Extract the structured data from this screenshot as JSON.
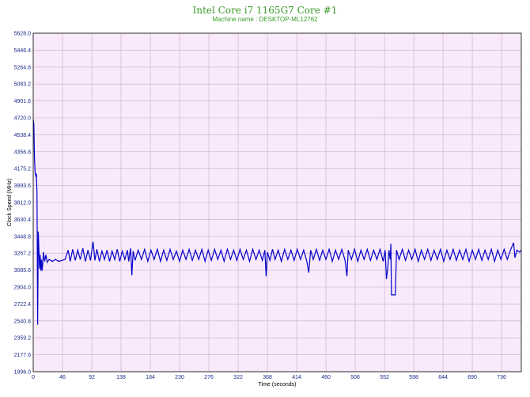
{
  "chart_data": {
    "type": "line",
    "title": "Intel Core i7 1165G7 Core #1",
    "subtitle": "Machine name : DESKTOP-ML12762",
    "xlabel": "Time (seconds)",
    "ylabel": "Clock Speed (MHz)",
    "xlim": [
      0,
      767
    ],
    "ylim": [
      1996.0,
      5628.0
    ],
    "x_ticks": [
      "0",
      "46",
      "92",
      "138",
      "184",
      "230",
      "276",
      "322",
      "368",
      "414",
      "460",
      "506",
      "552",
      "598",
      "644",
      "690",
      "736"
    ],
    "y_ticks": [
      "1996.0",
      "2177.6",
      "2359.2",
      "2540.8",
      "2722.4",
      "2904.0",
      "3085.6",
      "3267.2",
      "3448.8",
      "3630.4",
      "3812.0",
      "3993.6",
      "4175.2",
      "4356.8",
      "4538.4",
      "4720.0",
      "4901.6",
      "5083.2",
      "5264.8",
      "5446.4",
      "5628.0"
    ],
    "grid": true,
    "colors": {
      "line": "#0000c8",
      "plot_bg": "#f9eafb",
      "grid": "#c9a9c9",
      "title": "#3a9a2a",
      "tick_text": "#1b2a8a"
    },
    "series": [
      {
        "values": [
          [
            0,
            4700
          ],
          [
            1,
            4650
          ],
          [
            2,
            4280
          ],
          [
            3,
            4130
          ],
          [
            4,
            4100
          ],
          [
            5,
            4120
          ],
          [
            6,
            3900
          ],
          [
            7,
            2500
          ],
          [
            8,
            3500
          ],
          [
            9,
            3300
          ],
          [
            10,
            3100
          ],
          [
            11,
            3250
          ],
          [
            12,
            3080
          ],
          [
            13,
            3200
          ],
          [
            14,
            3080
          ],
          [
            15,
            3160
          ],
          [
            16,
            3280
          ],
          [
            18,
            3180
          ],
          [
            20,
            3250
          ],
          [
            22,
            3170
          ],
          [
            25,
            3200
          ],
          [
            30,
            3180
          ],
          [
            35,
            3200
          ],
          [
            40,
            3180
          ],
          [
            45,
            3190
          ],
          [
            50,
            3200
          ],
          [
            55,
            3300
          ],
          [
            58,
            3180
          ],
          [
            62,
            3310
          ],
          [
            66,
            3190
          ],
          [
            70,
            3300
          ],
          [
            74,
            3200
          ],
          [
            78,
            3320
          ],
          [
            82,
            3180
          ],
          [
            86,
            3300
          ],
          [
            90,
            3190
          ],
          [
            94,
            3390
          ],
          [
            97,
            3190
          ],
          [
            100,
            3310
          ],
          [
            104,
            3180
          ],
          [
            108,
            3290
          ],
          [
            112,
            3200
          ],
          [
            116,
            3300
          ],
          [
            120,
            3180
          ],
          [
            124,
            3290
          ],
          [
            128,
            3200
          ],
          [
            132,
            3310
          ],
          [
            136,
            3180
          ],
          [
            140,
            3290
          ],
          [
            144,
            3200
          ],
          [
            148,
            3300
          ],
          [
            150,
            3180
          ],
          [
            153,
            3320
          ],
          [
            155,
            3030
          ],
          [
            157,
            3290
          ],
          [
            160,
            3190
          ],
          [
            165,
            3300
          ],
          [
            170,
            3200
          ],
          [
            175,
            3310
          ],
          [
            180,
            3180
          ],
          [
            185,
            3300
          ],
          [
            190,
            3200
          ],
          [
            195,
            3310
          ],
          [
            200,
            3180
          ],
          [
            205,
            3300
          ],
          [
            210,
            3190
          ],
          [
            215,
            3310
          ],
          [
            220,
            3200
          ],
          [
            225,
            3290
          ],
          [
            230,
            3180
          ],
          [
            235,
            3300
          ],
          [
            240,
            3200
          ],
          [
            245,
            3310
          ],
          [
            250,
            3190
          ],
          [
            255,
            3300
          ],
          [
            260,
            3200
          ],
          [
            265,
            3310
          ],
          [
            270,
            3180
          ],
          [
            275,
            3300
          ],
          [
            280,
            3190
          ],
          [
            285,
            3310
          ],
          [
            290,
            3200
          ],
          [
            295,
            3300
          ],
          [
            300,
            3180
          ],
          [
            305,
            3310
          ],
          [
            310,
            3200
          ],
          [
            315,
            3300
          ],
          [
            320,
            3190
          ],
          [
            325,
            3310
          ],
          [
            330,
            3200
          ],
          [
            335,
            3300
          ],
          [
            340,
            3180
          ],
          [
            345,
            3310
          ],
          [
            350,
            3200
          ],
          [
            355,
            3300
          ],
          [
            360,
            3190
          ],
          [
            364,
            3300
          ],
          [
            366,
            3020
          ],
          [
            368,
            3280
          ],
          [
            372,
            3190
          ],
          [
            376,
            3310
          ],
          [
            380,
            3200
          ],
          [
            385,
            3300
          ],
          [
            390,
            3180
          ],
          [
            395,
            3310
          ],
          [
            400,
            3200
          ],
          [
            405,
            3300
          ],
          [
            410,
            3190
          ],
          [
            415,
            3310
          ],
          [
            420,
            3200
          ],
          [
            425,
            3300
          ],
          [
            430,
            3180
          ],
          [
            433,
            3060
          ],
          [
            436,
            3300
          ],
          [
            440,
            3200
          ],
          [
            445,
            3310
          ],
          [
            450,
            3190
          ],
          [
            455,
            3300
          ],
          [
            460,
            3200
          ],
          [
            465,
            3310
          ],
          [
            470,
            3180
          ],
          [
            475,
            3300
          ],
          [
            480,
            3200
          ],
          [
            485,
            3310
          ],
          [
            490,
            3190
          ],
          [
            493,
            3020
          ],
          [
            495,
            3300
          ],
          [
            500,
            3200
          ],
          [
            505,
            3310
          ],
          [
            510,
            3180
          ],
          [
            515,
            3300
          ],
          [
            520,
            3200
          ],
          [
            525,
            3310
          ],
          [
            530,
            3190
          ],
          [
            535,
            3300
          ],
          [
            540,
            3200
          ],
          [
            545,
            3310
          ],
          [
            550,
            3180
          ],
          [
            553,
            3300
          ],
          [
            555,
            2990
          ],
          [
            557,
            3100
          ],
          [
            559,
            3300
          ],
          [
            561,
            3200
          ],
          [
            562,
            3370
          ],
          [
            563,
            2820
          ],
          [
            569,
            2820
          ],
          [
            571,
            3300
          ],
          [
            575,
            3200
          ],
          [
            580,
            3310
          ],
          [
            585,
            3190
          ],
          [
            590,
            3300
          ],
          [
            595,
            3200
          ],
          [
            600,
            3310
          ],
          [
            605,
            3180
          ],
          [
            610,
            3300
          ],
          [
            615,
            3200
          ],
          [
            620,
            3310
          ],
          [
            625,
            3190
          ],
          [
            630,
            3300
          ],
          [
            635,
            3200
          ],
          [
            640,
            3310
          ],
          [
            645,
            3180
          ],
          [
            650,
            3300
          ],
          [
            655,
            3200
          ],
          [
            660,
            3310
          ],
          [
            665,
            3190
          ],
          [
            670,
            3300
          ],
          [
            675,
            3200
          ],
          [
            680,
            3310
          ],
          [
            685,
            3180
          ],
          [
            690,
            3300
          ],
          [
            695,
            3200
          ],
          [
            700,
            3310
          ],
          [
            705,
            3190
          ],
          [
            710,
            3300
          ],
          [
            715,
            3200
          ],
          [
            720,
            3310
          ],
          [
            725,
            3180
          ],
          [
            730,
            3300
          ],
          [
            735,
            3200
          ],
          [
            740,
            3310
          ],
          [
            745,
            3200
          ],
          [
            750,
            3300
          ],
          [
            755,
            3380
          ],
          [
            757,
            3220
          ],
          [
            760,
            3300
          ],
          [
            764,
            3280
          ],
          [
            767,
            3300
          ]
        ]
      }
    ]
  }
}
